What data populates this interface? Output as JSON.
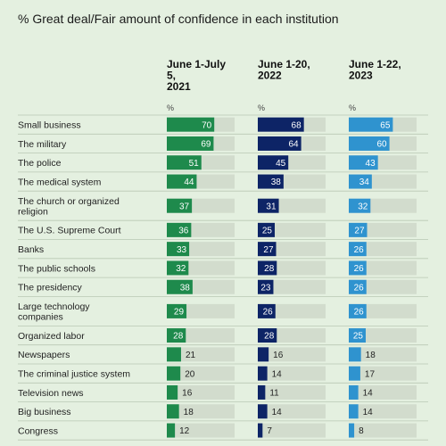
{
  "chart_data": {
    "type": "bar",
    "title": "% Great deal/Fair amount of confidence in each institution",
    "unit_label": "%",
    "xlim": [
      0,
      100
    ],
    "categories": [
      [
        "Small business"
      ],
      [
        "The military"
      ],
      [
        "The police"
      ],
      [
        "The medical system"
      ],
      [
        "The church or organized",
        "religion"
      ],
      [
        "The U.S. Supreme Court"
      ],
      [
        "Banks"
      ],
      [
        "The public schools"
      ],
      [
        "The presidency"
      ],
      [
        "Large technology",
        "companies"
      ],
      [
        "Organized labor"
      ],
      [
        "Newspapers"
      ],
      [
        "The criminal justice system"
      ],
      [
        "Television news"
      ],
      [
        "Big business"
      ],
      [
        "Congress"
      ]
    ],
    "series": [
      {
        "name": [
          "June 1-July",
          "5,",
          "2021"
        ],
        "color": "#1e8a4c",
        "values": [
          70,
          69,
          51,
          44,
          37,
          36,
          33,
          32,
          38,
          29,
          28,
          21,
          20,
          16,
          18,
          12
        ]
      },
      {
        "name": [
          "June 1-20,",
          "2022"
        ],
        "color": "#0d2466",
        "values": [
          68,
          64,
          45,
          38,
          31,
          25,
          27,
          28,
          23,
          26,
          28,
          16,
          14,
          11,
          14,
          7
        ]
      },
      {
        "name": [
          "June 1-22,",
          "2023"
        ],
        "color": "#2f93cf",
        "values": [
          65,
          60,
          43,
          34,
          32,
          27,
          26,
          26,
          26,
          26,
          25,
          18,
          17,
          14,
          14,
          8
        ]
      }
    ],
    "track_color": "#d2dccd",
    "divider_color": "#b9c8b4",
    "grid": false,
    "legend": "column headers"
  }
}
